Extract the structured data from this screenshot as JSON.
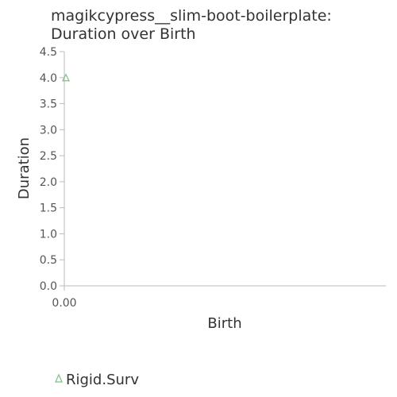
{
  "chart_data": {
    "type": "scatter",
    "title_lines": [
      "magikcypress__slim-boot-boilerplate:",
      "Duration over Birth"
    ],
    "xlabel": "Birth",
    "ylabel": "Duration",
    "x_ticks": [
      "0.00"
    ],
    "y_ticks": [
      "0.0",
      "0.5",
      "1.0",
      "1.5",
      "2.0",
      "2.5",
      "3.0",
      "3.5",
      "4.0",
      "4.5"
    ],
    "ylim": [
      0,
      4.5
    ],
    "xlim": [
      0,
      1
    ],
    "grid": false,
    "legend_position": "bottom-left",
    "series": [
      {
        "name": "Rigid.Surv",
        "marker": "triangle",
        "color": "#7fbf7f",
        "points": [
          {
            "x": 0.0,
            "y": 4.0
          }
        ]
      }
    ]
  }
}
